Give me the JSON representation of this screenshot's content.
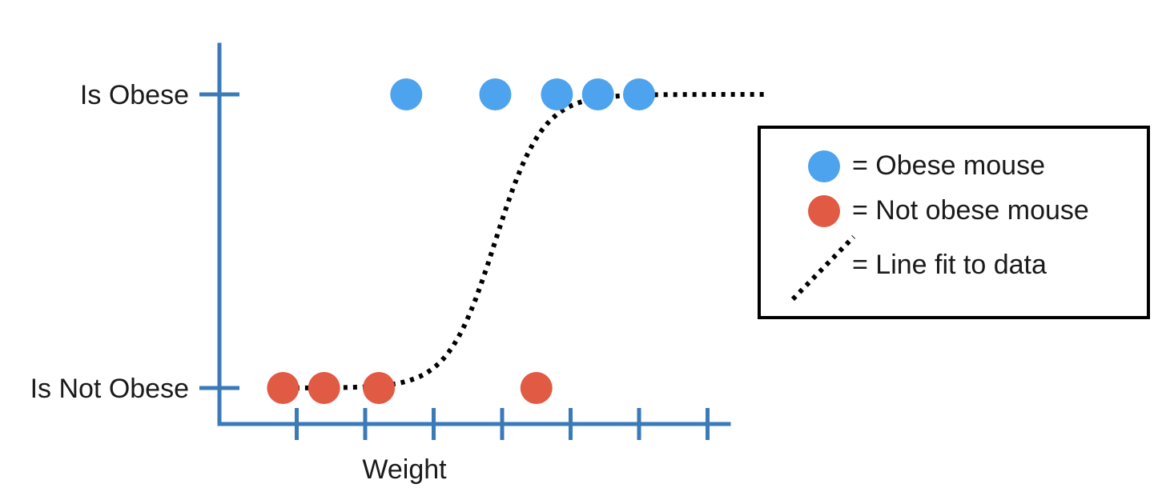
{
  "chart_data": {
    "type": "scatter",
    "title": "",
    "xlabel": "Weight",
    "ylabel": "",
    "xlim": [
      0,
      10
    ],
    "ylim": [
      0,
      1
    ],
    "x_ticks": [
      1,
      2,
      3,
      4,
      5,
      6,
      7
    ],
    "y_tick_labels": [
      {
        "value": 0,
        "label": "Is Not Obese"
      },
      {
        "value": 1,
        "label": "Is Obese"
      }
    ],
    "series": [
      {
        "name": "= Obese mouse",
        "kind": "points",
        "color": "#4da3ee",
        "points": [
          {
            "x": 2.6,
            "y": 1
          },
          {
            "x": 3.9,
            "y": 1
          },
          {
            "x": 4.8,
            "y": 1
          },
          {
            "x": 5.4,
            "y": 1
          },
          {
            "x": 6.0,
            "y": 1
          }
        ]
      },
      {
        "name": "= Not obese mouse",
        "kind": "points",
        "color": "#e05a44",
        "points": [
          {
            "x": 0.8,
            "y": 0
          },
          {
            "x": 1.4,
            "y": 0
          },
          {
            "x": 2.2,
            "y": 0
          },
          {
            "x": 4.5,
            "y": 0
          }
        ]
      },
      {
        "name": "= Line fit to data",
        "kind": "sigmoid",
        "color": "#000000",
        "x_range": [
          0.7,
          7.9
        ],
        "midpoint": 3.9,
        "steepness": 2.9
      }
    ],
    "legend_position": "right",
    "grid": false,
    "axis_color": "#3a7ab8"
  }
}
